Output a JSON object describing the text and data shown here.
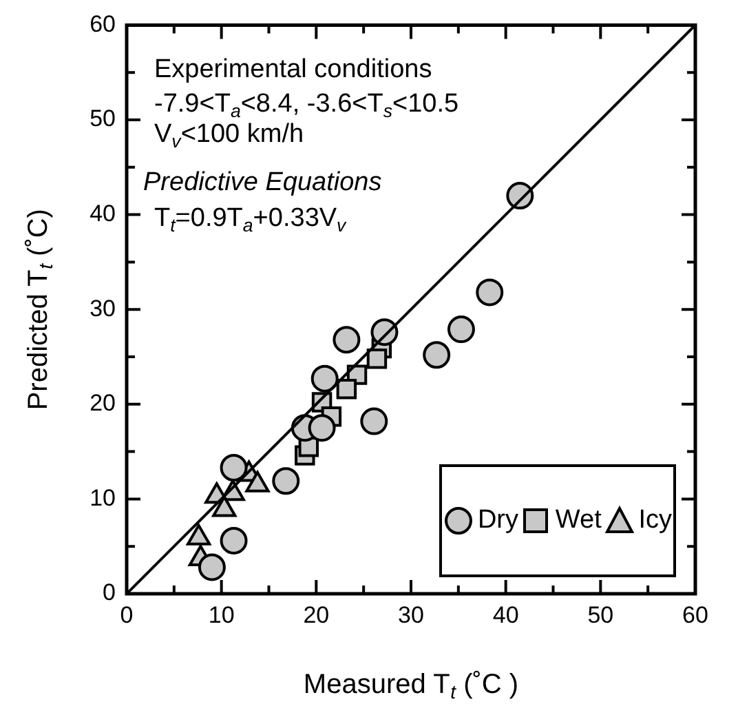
{
  "chart_data": {
    "type": "scatter",
    "xlabel": "Measured T$_{t}$ (˚C )",
    "ylabel": "Predicted T$_{t}$ (˚C)",
    "xlim": [
      0,
      60
    ],
    "ylim": [
      0,
      60
    ],
    "xticks": [
      0,
      {
        "value": 5,
        "label": null
      },
      10,
      {
        "value": 15,
        "label": null
      },
      20,
      {
        "value": 25,
        "label": null
      },
      30,
      {
        "value": 35,
        "label": null
      },
      40,
      {
        "value": 45,
        "label": null
      },
      50,
      {
        "value": 55,
        "label": null
      },
      {
        "value": 60,
        "label": "60"
      }
    ],
    "yticks": [
      0,
      {
        "value": 5,
        "label": null
      },
      10,
      {
        "value": 15,
        "label": null
      },
      20,
      {
        "value": 25,
        "label": null
      },
      30,
      {
        "value": 35,
        "label": null
      },
      40,
      {
        "value": 45,
        "label": null
      },
      50,
      {
        "value": 55,
        "label": null
      },
      60
    ],
    "legend": "bottom right",
    "grid": false,
    "annotations": [
      "Experimental conditions",
      "-7.9<T$_{a}$<8.4, -3.6<T$_{s}$<10.5",
      "V$_{v}$<100 km/h",
      "Predictive Equations",
      "T$_{t}$=0.9T$_{a}$+0.33V$_{v}$"
    ],
    "series": [
      {
        "type": "line",
        "color": "#000000",
        "marker": "none",
        "x": [
          0,
          60
        ],
        "values": [
          0,
          60
        ]
      },
      {
        "name": "Dry",
        "color": "#c8c8c8",
        "marker": "circle",
        "x": [
          41.5,
          38.3,
          35.3,
          32.7,
          27.2,
          23.2,
          20.9,
          18.8,
          20.6,
          26.1,
          16.8,
          11.3,
          11.3,
          9.0
        ],
        "values": [
          42,
          31.8,
          27.9,
          25.2,
          27.6,
          26.8,
          22.7,
          17.5,
          17.5,
          18.2,
          11.9,
          13.3,
          5.6,
          2.8
        ]
      },
      {
        "name": "Wet",
        "color": "#c8c8c8",
        "marker": "square",
        "x": [
          26.9,
          26.4,
          24.3,
          23.2,
          20.6,
          21.6,
          18.8,
          19.2
        ],
        "values": [
          25.9,
          24.8,
          23.1,
          21.6,
          20.2,
          18.7,
          14.6,
          15.5
        ]
      },
      {
        "name": "Icy",
        "color": "#c8c8c8",
        "marker": "triangle",
        "x": [
          12.9,
          13.8,
          11.2,
          9.5,
          10.3,
          7.6,
          7.8
        ],
        "values": [
          12.6,
          11.5,
          10.6,
          10.3,
          8.9,
          5.9,
          3.7
        ]
      }
    ]
  }
}
